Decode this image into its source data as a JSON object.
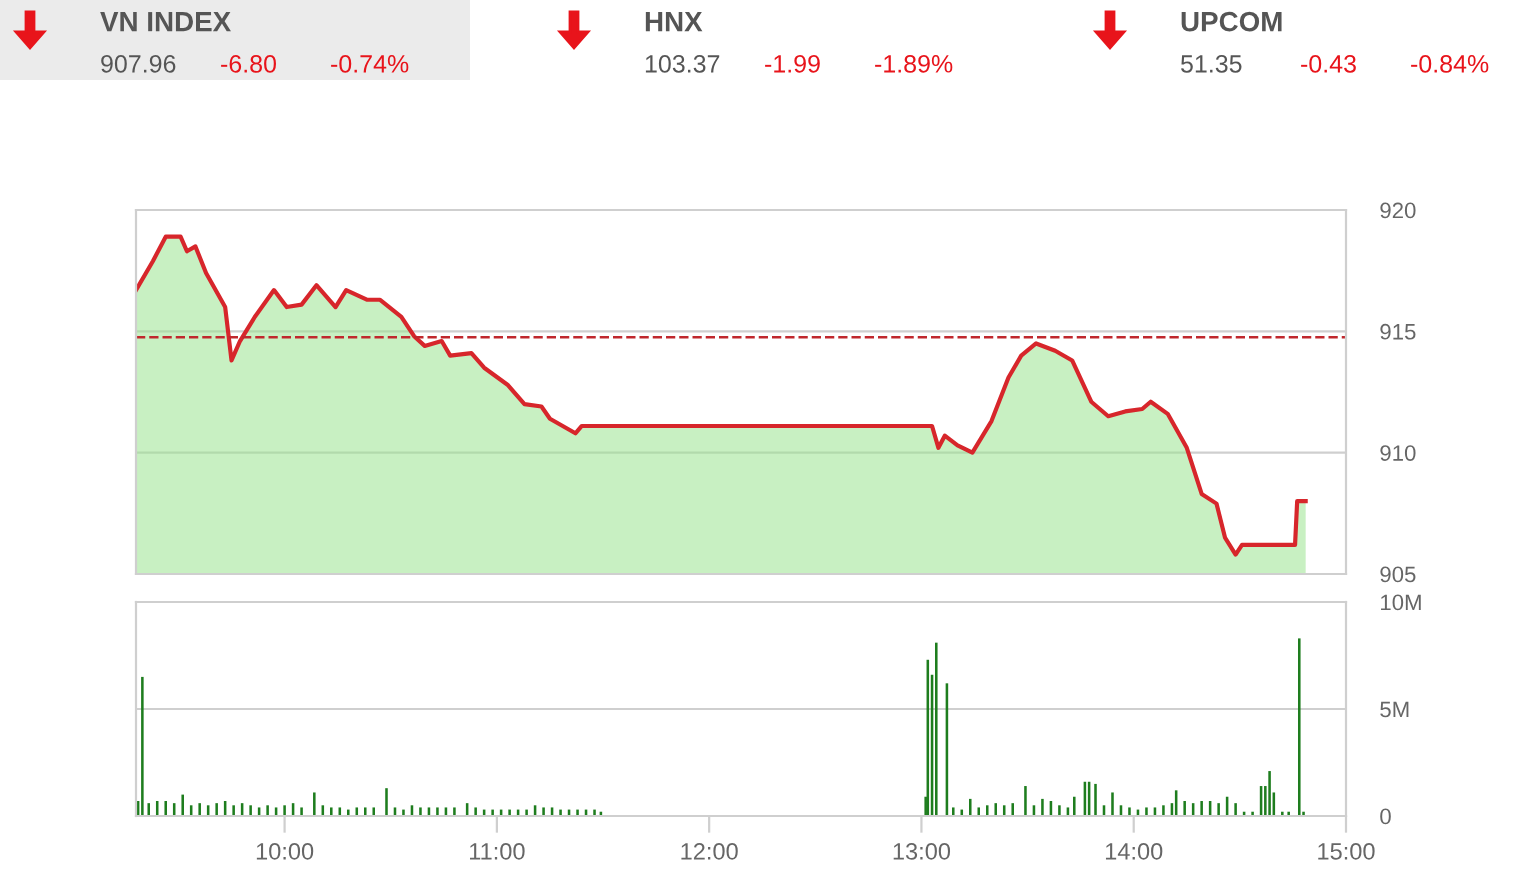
{
  "chart_data": [
    {
      "type": "other",
      "annotations": [
        "VN INDEX",
        "907.96",
        "-6.80",
        "-0.74%",
        "HNX",
        "103.37",
        "-1.99",
        "-1.89%",
        "UPCOM",
        "51.35",
        "-0.43",
        "-0.84%"
      ]
    },
    {
      "type": "area",
      "tick_labels": "y",
      "grid": "y",
      "legend": false,
      "xlim": [
        9.3,
        15
      ],
      "ylim": [
        905,
        920
      ],
      "yticks": [
        905,
        910,
        915,
        920
      ],
      "ref_lines": [
        {
          "axis": "y",
          "value": 914.76,
          "color": "#c0282d",
          "line_style": "dashed"
        }
      ],
      "series": [
        {
          "type": "area",
          "color": "#9be38f",
          "x": [
            9.3,
            9.38,
            9.44,
            9.51,
            9.54,
            9.58,
            9.63,
            9.72,
            9.75,
            9.79,
            9.86,
            9.95,
            10.01,
            10.08,
            10.15,
            10.24,
            10.29,
            10.39,
            10.45,
            10.55,
            10.61,
            10.66,
            10.74,
            10.78,
            10.88,
            10.94,
            11.05,
            11.13,
            11.21,
            11.25,
            11.37,
            11.4,
            11.47,
            13.05,
            13.08,
            13.11,
            13.17,
            13.24,
            13.33,
            13.41,
            13.47,
            13.54,
            13.63,
            13.71,
            13.8,
            13.88,
            13.96,
            14.04,
            14.08,
            14.16,
            14.25,
            14.32,
            14.39,
            14.43,
            14.48,
            14.51,
            14.76,
            14.77,
            14.81
          ],
          "values": [
            916.7,
            917.9,
            918.9,
            918.9,
            918.3,
            918.5,
            917.4,
            916.0,
            913.8,
            914.6,
            915.6,
            916.7,
            916.0,
            916.1,
            916.9,
            916.0,
            916.7,
            916.3,
            916.3,
            915.6,
            914.8,
            914.4,
            914.6,
            914.0,
            914.1,
            913.5,
            912.8,
            912.0,
            911.9,
            911.4,
            910.8,
            911.1,
            911.1,
            911.1,
            910.2,
            910.7,
            910.3,
            910.0,
            911.3,
            913.1,
            914.0,
            914.5,
            914.2,
            913.8,
            912.1,
            911.5,
            911.7,
            911.8,
            912.1,
            911.6,
            910.2,
            908.3,
            907.9,
            906.5,
            905.8,
            906.2,
            906.2,
            908.0,
            908.0
          ]
        },
        {
          "type": "line",
          "color": "#d7262b",
          "x": [
            9.3,
            9.38,
            9.44,
            9.51,
            9.54,
            9.58,
            9.63,
            9.72,
            9.75,
            9.79,
            9.86,
            9.95,
            10.01,
            10.08,
            10.15,
            10.24,
            10.29,
            10.39,
            10.45,
            10.55,
            10.61,
            10.66,
            10.74,
            10.78,
            10.88,
            10.94,
            11.05,
            11.13,
            11.21,
            11.25,
            11.37,
            11.4,
            11.47,
            13.05,
            13.08,
            13.11,
            13.17,
            13.24,
            13.33,
            13.41,
            13.47,
            13.54,
            13.63,
            13.71,
            13.8,
            13.88,
            13.96,
            14.04,
            14.08,
            14.16,
            14.25,
            14.32,
            14.39,
            14.43,
            14.48,
            14.51,
            14.76,
            14.77,
            14.81
          ],
          "values": [
            916.7,
            917.9,
            918.9,
            918.9,
            918.3,
            918.5,
            917.4,
            916.0,
            913.8,
            914.6,
            915.6,
            916.7,
            916.0,
            916.1,
            916.9,
            916.0,
            916.7,
            916.3,
            916.3,
            915.6,
            914.8,
            914.4,
            914.6,
            914.0,
            914.1,
            913.5,
            912.8,
            912.0,
            911.9,
            911.4,
            910.8,
            911.1,
            911.1,
            911.1,
            910.2,
            910.7,
            910.3,
            910.0,
            911.3,
            913.1,
            914.0,
            914.5,
            914.2,
            913.8,
            912.1,
            911.5,
            911.7,
            911.8,
            912.1,
            911.6,
            910.2,
            908.3,
            907.9,
            906.5,
            905.8,
            906.2,
            906.2,
            908.0,
            908.0
          ]
        }
      ]
    },
    {
      "type": "bar",
      "grid": "y",
      "legend": false,
      "xlim": [
        9.3,
        15
      ],
      "xticks": [
        {
          "value": 10,
          "label": "10:00"
        },
        {
          "value": 11,
          "label": "11:00"
        },
        {
          "value": 12,
          "label": "12:00"
        },
        {
          "value": 13,
          "label": "13:00"
        },
        {
          "value": 14,
          "label": "14:00"
        },
        {
          "value": 15,
          "label": "15:00"
        }
      ],
      "ylim": [
        0,
        10
      ],
      "yticks": [
        0,
        {
          "value": 5,
          "label": "5M"
        },
        {
          "value": 10,
          "label": "10M"
        }
      ],
      "series": [
        {
          "color": "#1e7d1e",
          "x": [
            9.31,
            9.33,
            9.36,
            9.4,
            9.44,
            9.48,
            9.52,
            9.56,
            9.6,
            9.64,
            9.68,
            9.72,
            9.76,
            9.8,
            9.84,
            9.88,
            9.92,
            9.96,
            10.0,
            10.04,
            10.08,
            10.14,
            10.18,
            10.22,
            10.26,
            10.3,
            10.34,
            10.38,
            10.42,
            10.48,
            10.52,
            10.56,
            10.6,
            10.64,
            10.68,
            10.72,
            10.76,
            10.8,
            10.86,
            10.9,
            10.94,
            10.98,
            11.02,
            11.06,
            11.1,
            11.14,
            11.18,
            11.22,
            11.26,
            11.3,
            11.34,
            11.38,
            11.42,
            11.46,
            11.49,
            13.02,
            13.03,
            13.05,
            13.07,
            13.12,
            13.15,
            13.19,
            13.23,
            13.27,
            13.31,
            13.35,
            13.39,
            13.43,
            13.49,
            13.53,
            13.57,
            13.61,
            13.65,
            13.69,
            13.72,
            13.77,
            13.79,
            13.82,
            13.86,
            13.9,
            13.94,
            13.98,
            14.02,
            14.06,
            14.1,
            14.14,
            14.18,
            14.2,
            14.24,
            14.28,
            14.32,
            14.36,
            14.4,
            14.44,
            14.48,
            14.52,
            14.56,
            14.6,
            14.62,
            14.64,
            14.66,
            14.7,
            14.73,
            14.78,
            14.8
          ],
          "values": [
            0.7,
            6.5,
            0.6,
            0.7,
            0.7,
            0.6,
            1.0,
            0.5,
            0.6,
            0.5,
            0.6,
            0.7,
            0.5,
            0.6,
            0.5,
            0.4,
            0.5,
            0.4,
            0.5,
            0.6,
            0.4,
            1.1,
            0.5,
            0.4,
            0.4,
            0.3,
            0.4,
            0.4,
            0.4,
            1.3,
            0.4,
            0.3,
            0.5,
            0.4,
            0.4,
            0.4,
            0.4,
            0.4,
            0.6,
            0.4,
            0.3,
            0.3,
            0.3,
            0.3,
            0.3,
            0.3,
            0.5,
            0.4,
            0.4,
            0.3,
            0.3,
            0.3,
            0.3,
            0.3,
            0.2,
            0.9,
            7.3,
            6.6,
            8.1,
            6.2,
            0.4,
            0.3,
            0.8,
            0.4,
            0.5,
            0.6,
            0.5,
            0.6,
            1.4,
            0.5,
            0.8,
            0.7,
            0.5,
            0.4,
            0.9,
            1.6,
            1.6,
            1.5,
            0.5,
            1.1,
            0.5,
            0.4,
            0.3,
            0.4,
            0.4,
            0.5,
            0.6,
            1.2,
            0.7,
            0.6,
            0.7,
            0.7,
            0.6,
            0.9,
            0.6,
            0.2,
            0.2,
            1.4,
            1.4,
            2.1,
            1.1,
            0.2,
            0.2,
            8.3,
            0.2
          ]
        }
      ]
    }
  ]
}
